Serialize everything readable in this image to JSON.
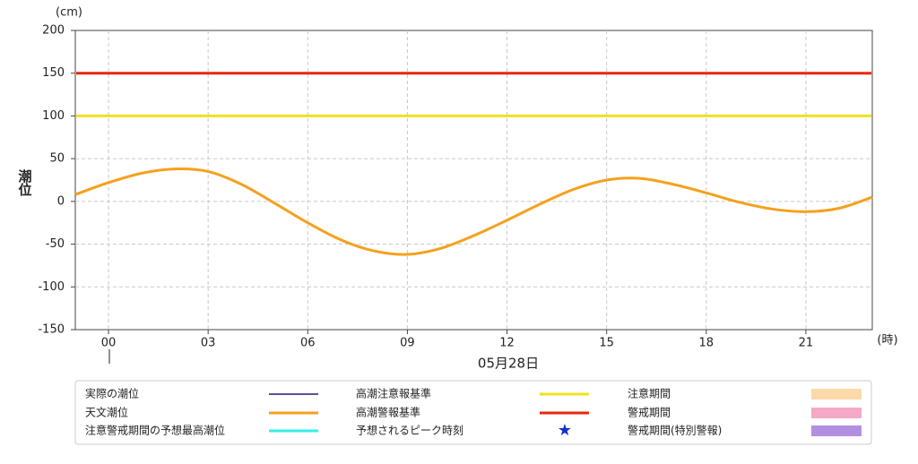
{
  "chart_data": {
    "type": "line",
    "y_unit": "(cm)",
    "y_label": "潮位",
    "x_unit": "(時)",
    "date_label": "05月28日",
    "x": [
      -1,
      0,
      1,
      2,
      3,
      4,
      5,
      6,
      7,
      8,
      9,
      10,
      11,
      12,
      13,
      14,
      15,
      16,
      17,
      18,
      19,
      20,
      21,
      22,
      23
    ],
    "series": [
      {
        "name": "天文潮位",
        "color": "#f5a11c",
        "values": [
          8,
          22,
          33,
          38,
          35,
          20,
          -2,
          -25,
          -45,
          -58,
          -62,
          -55,
          -40,
          -22,
          -3,
          14,
          25,
          27,
          20,
          10,
          -1,
          -9,
          -12,
          -8,
          5
        ]
      }
    ],
    "thresholds": [
      {
        "name": "高潮注意報基準",
        "value": 100,
        "color": "#f0e020"
      },
      {
        "name": "高潮警報基準",
        "value": 150,
        "color": "#e8260e"
      }
    ],
    "legend_extra": [
      {
        "name": "実際の潮位",
        "color": "#1a1a80",
        "symbol": "line"
      },
      {
        "name": "注意警戒期間の予想最高潮位",
        "color": "#33eeee",
        "symbol": "line"
      },
      {
        "name": "予想されるピーク時刻",
        "color": "#1030d0",
        "symbol": "star"
      },
      {
        "name": "注意期間",
        "color": "#fbd9a8",
        "symbol": "rect"
      },
      {
        "name": "警戒期間",
        "color": "#f6a9c6",
        "symbol": "rect"
      },
      {
        "name": "警戒期間(特別警報)",
        "color": "#b28fe0",
        "symbol": "rect"
      }
    ],
    "xlim": [
      -1,
      23
    ],
    "xticks": [
      {
        "value": 0,
        "label": "00"
      },
      {
        "value": 3,
        "label": "03"
      },
      {
        "value": 6,
        "label": "06"
      },
      {
        "value": 9,
        "label": "09"
      },
      12,
      15,
      18,
      21
    ],
    "ylim": [
      -150,
      200
    ],
    "yticks": [
      -150,
      -100,
      -50,
      0,
      50,
      100,
      150,
      200
    ],
    "grid": true
  }
}
